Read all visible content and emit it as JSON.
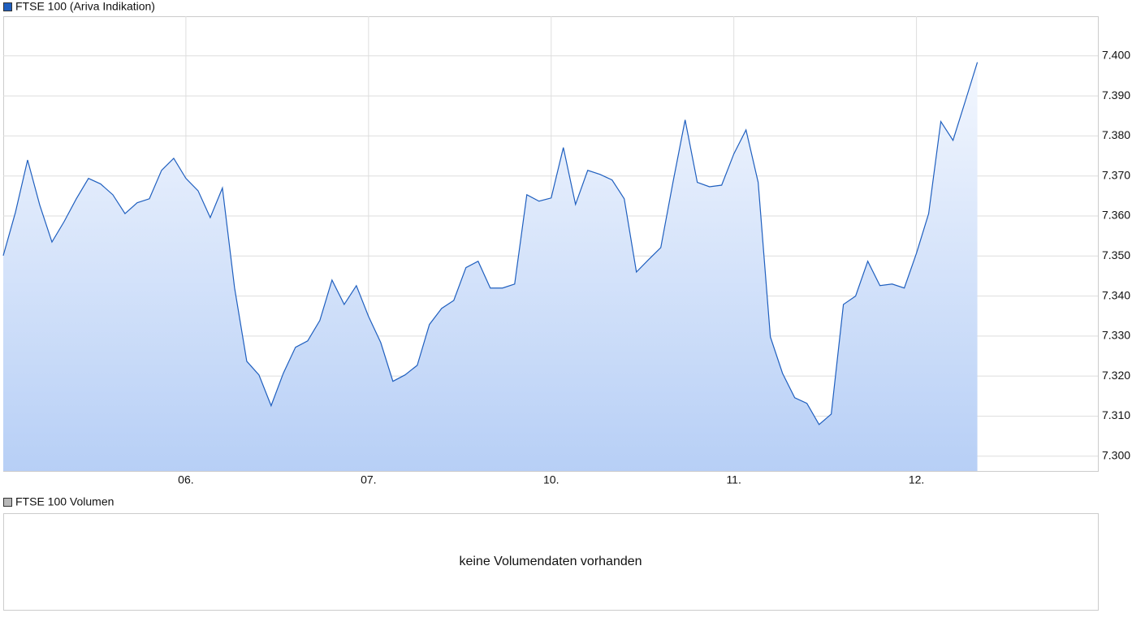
{
  "chart_data": [
    {
      "type": "area",
      "series": [
        {
          "name": "FTSE 100 (Ariva Indikation)",
          "color": "#1f5fbf",
          "values": [
            7350.1,
            7360.9,
            7374.0,
            7362.7,
            7353.5,
            7358.6,
            7364.3,
            7369.4,
            7368.0,
            7365.3,
            7360.6,
            7363.3,
            7364.3,
            7371.4,
            7374.4,
            7369.4,
            7366.3,
            7359.6,
            7367.0,
            7342.0,
            7323.7,
            7320.3,
            7312.6,
            7320.7,
            7327.2,
            7328.8,
            7333.9,
            7344.0,
            7337.9,
            7342.6,
            7334.9,
            7328.4,
            7318.7,
            7320.3,
            7322.7,
            7332.9,
            7336.9,
            7338.9,
            7347.1,
            7348.7,
            7342.0,
            7342.0,
            7343.0,
            7365.3,
            7363.7,
            7364.5,
            7377.1,
            7362.9,
            7371.4,
            7370.4,
            7369.0,
            7364.3,
            7346.0,
            7349.1,
            7352.1,
            7368.4,
            7384.0,
            7368.4,
            7367.3,
            7367.7,
            7375.5,
            7381.5,
            7368.4,
            7329.8,
            7320.7,
            7314.6,
            7313.2,
            7307.9,
            7310.5,
            7337.9,
            7340.0,
            7348.7,
            7342.6,
            7343.0,
            7342.0,
            7350.7,
            7360.6,
            7383.6,
            7378.9,
            7388.6,
            7398.4
          ]
        }
      ],
      "xlim": [
        0,
        89.9
      ],
      "xticks": [
        {
          "value": 15,
          "label": "06."
        },
        {
          "value": 30,
          "label": "07."
        },
        {
          "value": 45,
          "label": "10."
        },
        {
          "value": 60,
          "label": "11."
        },
        {
          "value": 75,
          "label": "12."
        }
      ],
      "ylim": [
        7296.3,
        7409.9
      ],
      "yticks": [
        {
          "value": 7300,
          "label": "7.300"
        },
        {
          "value": 7310,
          "label": "7.310"
        },
        {
          "value": 7320,
          "label": "7.320"
        },
        {
          "value": 7330,
          "label": "7.330"
        },
        {
          "value": 7340,
          "label": "7.340"
        },
        {
          "value": 7350,
          "label": "7.350"
        },
        {
          "value": 7360,
          "label": "7.360"
        },
        {
          "value": 7370,
          "label": "7.370"
        },
        {
          "value": 7380,
          "label": "7.380"
        },
        {
          "value": 7390,
          "label": "7.390"
        },
        {
          "value": 7400,
          "label": "7.400"
        }
      ],
      "grid": true
    },
    {
      "type": "bar",
      "series": [
        {
          "name": "FTSE 100 Volumen",
          "color": "#b8b8b8",
          "values": []
        }
      ],
      "note": "keine Volumendaten vorhanden"
    }
  ]
}
